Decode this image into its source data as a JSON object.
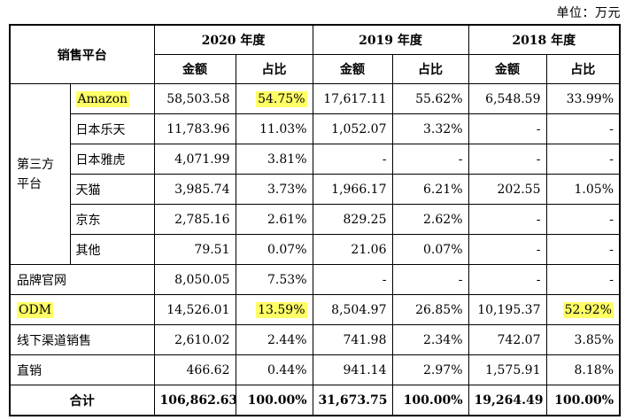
{
  "unit_label": "单位：万元",
  "header": {
    "platform": "销售平台",
    "years": [
      "2020 年度",
      "2019 年度",
      "2018 年度"
    ],
    "amount": "金额",
    "ratio": "占比"
  },
  "third_party_group": "第三方平台",
  "third_party_rows": [
    {
      "name": "Amazon",
      "hl_name": true,
      "v": [
        "58,503.58",
        "54.75%",
        "17,617.11",
        "55.62%",
        "6,548.59",
        "33.99%"
      ],
      "hl": [
        false,
        true,
        false,
        false,
        false,
        false
      ]
    },
    {
      "name": "日本乐天",
      "hl_name": false,
      "v": [
        "11,783.96",
        "11.03%",
        "1,052.07",
        "3.32%",
        "-",
        "-"
      ],
      "hl": [
        false,
        false,
        false,
        false,
        false,
        false
      ]
    },
    {
      "name": "日本雅虎",
      "hl_name": false,
      "v": [
        "4,071.99",
        "3.81%",
        "-",
        "-",
        "-",
        "-"
      ],
      "hl": [
        false,
        false,
        false,
        false,
        false,
        false
      ]
    },
    {
      "name": "天猫",
      "hl_name": false,
      "v": [
        "3,985.74",
        "3.73%",
        "1,966.17",
        "6.21%",
        "202.55",
        "1.05%"
      ],
      "hl": [
        false,
        false,
        false,
        false,
        false,
        false
      ]
    },
    {
      "name": "京东",
      "hl_name": false,
      "v": [
        "2,785.16",
        "2.61%",
        "829.25",
        "2.62%",
        "-",
        "-"
      ],
      "hl": [
        false,
        false,
        false,
        false,
        false,
        false
      ]
    },
    {
      "name": "其他",
      "hl_name": false,
      "v": [
        "79.51",
        "0.07%",
        "21.06",
        "0.07%",
        "-",
        "-"
      ],
      "hl": [
        false,
        false,
        false,
        false,
        false,
        false
      ]
    }
  ],
  "other_rows": [
    {
      "name": "品牌官网",
      "hl_name": false,
      "v": [
        "8,050.05",
        "7.53%",
        "-",
        "-",
        "-",
        "-"
      ],
      "hl": [
        false,
        false,
        false,
        false,
        false,
        false
      ]
    },
    {
      "name": "ODM",
      "hl_name": true,
      "v": [
        "14,526.01",
        "13.59%",
        "8,504.97",
        "26.85%",
        "10,195.37",
        "52.92%"
      ],
      "hl": [
        false,
        true,
        false,
        false,
        false,
        true
      ]
    },
    {
      "name": "线下渠道销售",
      "hl_name": false,
      "v": [
        "2,610.02",
        "2.44%",
        "741.98",
        "2.34%",
        "742.07",
        "3.85%"
      ],
      "hl": [
        false,
        false,
        false,
        false,
        false,
        false
      ]
    },
    {
      "name": "直销",
      "hl_name": false,
      "v": [
        "466.62",
        "0.44%",
        "941.14",
        "2.97%",
        "1,575.91",
        "8.18%"
      ],
      "hl": [
        false,
        false,
        false,
        false,
        false,
        false
      ]
    }
  ],
  "total": {
    "name": "合计",
    "v": [
      "106,862.63",
      "100.00%",
      "31,673.75",
      "100.00%",
      "19,264.49",
      "100.00%"
    ]
  },
  "highlight_color": "#ffff66"
}
